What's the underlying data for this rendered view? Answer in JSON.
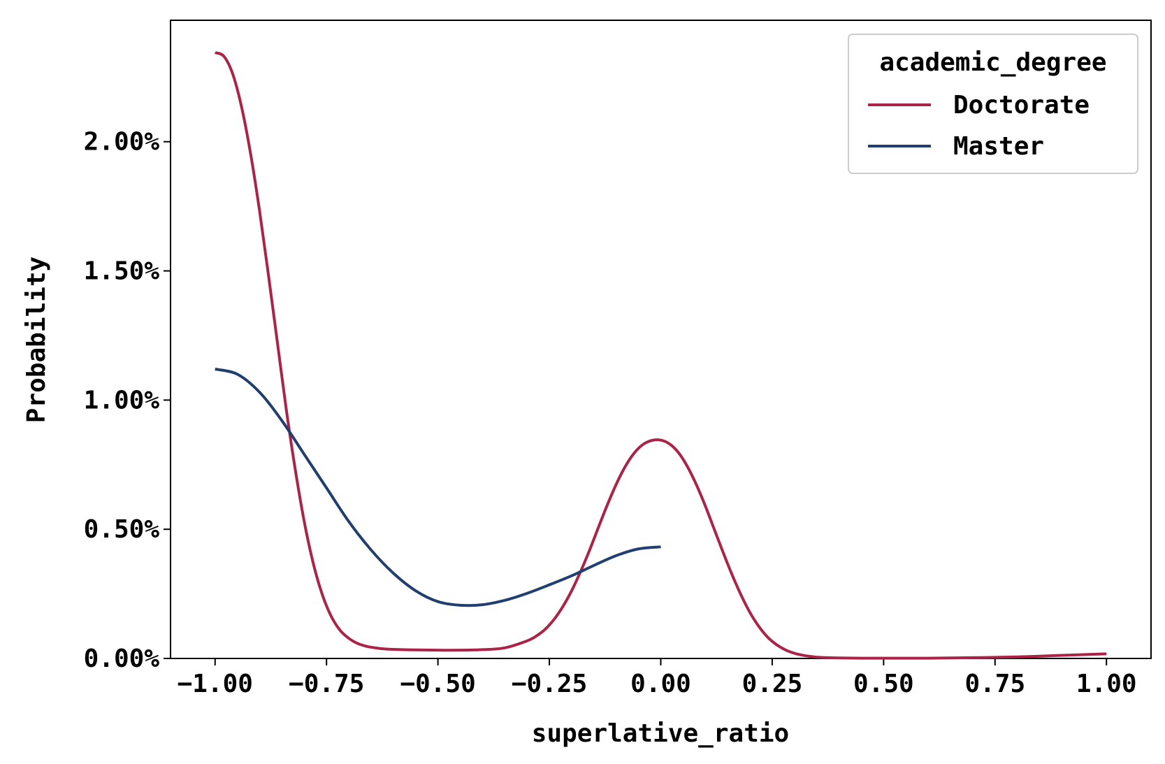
{
  "chart_data": {
    "type": "line",
    "title": "",
    "xlabel": "superlative_ratio",
    "ylabel": "Probability",
    "xlim": [
      -1.1,
      1.1
    ],
    "ylim": [
      0,
      0.0247
    ],
    "x_ticks": [
      -1.0,
      -0.75,
      -0.5,
      -0.25,
      0.0,
      0.25,
      0.5,
      0.75,
      1.0
    ],
    "x_tick_labels": [
      "−1.00",
      "−0.75",
      "−0.50",
      "−0.25",
      "0.00",
      "0.25",
      "0.50",
      "0.75",
      "1.00"
    ],
    "y_ticks": [
      0,
      0.005,
      0.01,
      0.015,
      0.02
    ],
    "y_tick_labels": [
      "0.00%",
      "0.50%",
      "1.00%",
      "1.50%",
      "2.00%"
    ],
    "grid": false,
    "legend": {
      "title": "academic_degree",
      "placement": "top-right"
    },
    "series": [
      {
        "name": "Doctorate",
        "color": "#ab2346",
        "x": [
          -1.0,
          -0.98,
          -0.96,
          -0.94,
          -0.92,
          -0.9,
          -0.88,
          -0.86,
          -0.84,
          -0.82,
          -0.8,
          -0.78,
          -0.76,
          -0.74,
          -0.72,
          -0.7,
          -0.68,
          -0.66,
          -0.64,
          -0.62,
          -0.6,
          -0.55,
          -0.5,
          -0.45,
          -0.4,
          -0.35,
          -0.3,
          -0.28,
          -0.26,
          -0.24,
          -0.22,
          -0.2,
          -0.18,
          -0.16,
          -0.14,
          -0.12,
          -0.1,
          -0.08,
          -0.06,
          -0.04,
          -0.02,
          0.0,
          0.02,
          0.04,
          0.06,
          0.08,
          0.1,
          0.12,
          0.14,
          0.16,
          0.18,
          0.2,
          0.22,
          0.24,
          0.26,
          0.28,
          0.3,
          0.32,
          0.34,
          0.36,
          0.4,
          0.45,
          0.5,
          0.6,
          0.7,
          0.8,
          0.9,
          1.0
        ],
        "y": [
          0.02345,
          0.0233,
          0.0226,
          0.0213,
          0.0195,
          0.0173,
          0.0148,
          0.0122,
          0.0096,
          0.0073,
          0.0053,
          0.0037,
          0.0025,
          0.00165,
          0.0011,
          0.00078,
          0.00058,
          0.00047,
          0.00041,
          0.00037,
          0.00035,
          0.00033,
          0.00032,
          0.00032,
          0.00034,
          0.00041,
          0.00068,
          0.00086,
          0.00112,
          0.0015,
          0.002,
          0.00262,
          0.00336,
          0.00418,
          0.00507,
          0.00594,
          0.00674,
          0.00742,
          0.00794,
          0.00828,
          0.00844,
          0.00845,
          0.0083,
          0.00796,
          0.00742,
          0.00672,
          0.0059,
          0.005,
          0.0041,
          0.00324,
          0.00246,
          0.00178,
          0.00124,
          0.00082,
          0.00053,
          0.00033,
          0.0002,
          0.00012,
          7e-05,
          4e-05,
          2e-05,
          1e-05,
          1e-05,
          1e-05,
          3e-05,
          6e-05,
          0.00012,
          0.00018
        ]
      },
      {
        "name": "Master",
        "color": "#213f6e",
        "x": [
          -1.0,
          -0.95,
          -0.9,
          -0.85,
          -0.8,
          -0.75,
          -0.7,
          -0.65,
          -0.6,
          -0.55,
          -0.5,
          -0.45,
          -0.4,
          -0.35,
          -0.3,
          -0.25,
          -0.2,
          -0.15,
          -0.1,
          -0.05,
          0.0
        ],
        "y": [
          0.0112,
          0.011,
          0.0103,
          0.0092,
          0.0079,
          0.0066,
          0.0053,
          0.0042,
          0.0033,
          0.00262,
          0.0022,
          0.00206,
          0.00208,
          0.00225,
          0.00252,
          0.00285,
          0.0032,
          0.0036,
          0.00398,
          0.00424,
          0.00432
        ]
      }
    ]
  }
}
